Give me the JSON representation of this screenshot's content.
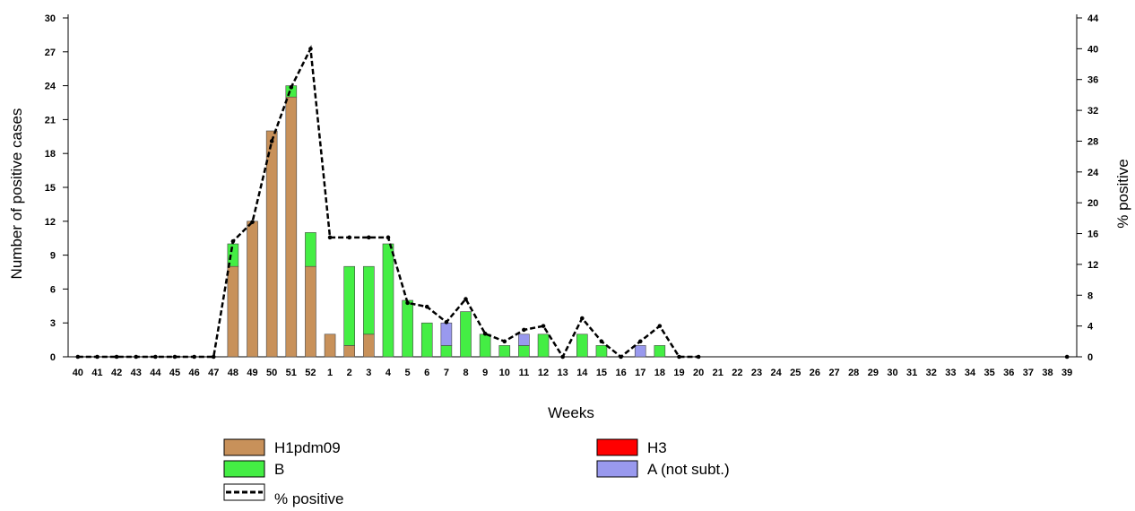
{
  "chart_data": {
    "type": "bar",
    "stacked": true,
    "xlabel": "Weeks",
    "ylabel": "Number of positive cases",
    "y2label": "% positive",
    "ylim": [
      0,
      30
    ],
    "y2lim": [
      0,
      44
    ],
    "yticks": [
      0,
      3,
      6,
      9,
      12,
      15,
      18,
      21,
      24,
      27,
      30
    ],
    "y2ticks": [
      0,
      4,
      8,
      12,
      16,
      20,
      24,
      28,
      32,
      36,
      40,
      44
    ],
    "grid": false,
    "legend_position": "bottom",
    "categories": [
      "40",
      "41",
      "42",
      "43",
      "44",
      "45",
      "46",
      "47",
      "48",
      "49",
      "50",
      "51",
      "52",
      "1",
      "2",
      "3",
      "4",
      "5",
      "6",
      "7",
      "8",
      "9",
      "10",
      "11",
      "12",
      "13",
      "14",
      "15",
      "16",
      "17",
      "18",
      "19",
      "20",
      "21",
      "22",
      "23",
      "24",
      "25",
      "26",
      "27",
      "28",
      "29",
      "30",
      "31",
      "32",
      "33",
      "34",
      "35",
      "36",
      "37",
      "38",
      "39"
    ],
    "series": [
      {
        "name": "H1pdm09",
        "color": "#c8915a",
        "values": [
          0,
          0,
          0,
          0,
          0,
          0,
          0,
          0,
          8,
          12,
          20,
          23,
          8,
          2,
          1,
          2,
          0,
          0,
          0,
          0,
          0,
          0,
          0,
          0,
          0,
          0,
          0,
          0,
          0,
          0,
          0,
          0,
          0,
          0,
          0,
          0,
          0,
          0,
          0,
          0,
          0,
          0,
          0,
          0,
          0,
          0,
          0,
          0,
          0,
          0,
          0,
          0
        ]
      },
      {
        "name": "H3",
        "color": "#ff0000",
        "values": [
          0,
          0,
          0,
          0,
          0,
          0,
          0,
          0,
          0,
          0,
          0,
          0,
          0,
          0,
          0,
          0,
          0,
          0,
          0,
          0,
          0,
          0,
          0,
          0,
          0,
          0,
          0,
          0,
          0,
          0,
          0,
          0,
          0,
          0,
          0,
          0,
          0,
          0,
          0,
          0,
          0,
          0,
          0,
          0,
          0,
          0,
          0,
          0,
          0,
          0,
          0,
          0
        ]
      },
      {
        "name": "B",
        "color": "#44ee44",
        "values": [
          0,
          0,
          0,
          0,
          0,
          0,
          0,
          0,
          2,
          0,
          0,
          1,
          3,
          0,
          7,
          6,
          10,
          5,
          3,
          1,
          4,
          2,
          1,
          1,
          2,
          0,
          2,
          1,
          0,
          0,
          1,
          0,
          0,
          0,
          0,
          0,
          0,
          0,
          0,
          0,
          0,
          0,
          0,
          0,
          0,
          0,
          0,
          0,
          0,
          0,
          0,
          0
        ]
      },
      {
        "name": "A (not subt.)",
        "color": "#9999ee",
        "values": [
          0,
          0,
          0,
          0,
          0,
          0,
          0,
          0,
          0,
          0,
          0,
          0,
          0,
          0,
          0,
          0,
          0,
          0,
          0,
          2,
          0,
          0,
          0,
          1,
          0,
          0,
          0,
          0,
          0,
          1,
          0,
          0,
          0,
          0,
          0,
          0,
          0,
          0,
          0,
          0,
          0,
          0,
          0,
          0,
          0,
          0,
          0,
          0,
          0,
          0,
          0,
          0
        ]
      }
    ],
    "line": {
      "name": "% positive",
      "axis": "right",
      "style": "dashed",
      "color": "#000000",
      "values": [
        0,
        0,
        0,
        0,
        0,
        0,
        0,
        0,
        15,
        17.5,
        28,
        35,
        40,
        15.5,
        15.5,
        15.5,
        15.5,
        7,
        6.5,
        4.5,
        7.5,
        3,
        2,
        3.5,
        4,
        0,
        5,
        2,
        0,
        2,
        4,
        0,
        0,
        null,
        null,
        null,
        null,
        null,
        null,
        null,
        null,
        null,
        null,
        null,
        null,
        null,
        null,
        null,
        null,
        null,
        null,
        0
      ]
    }
  }
}
